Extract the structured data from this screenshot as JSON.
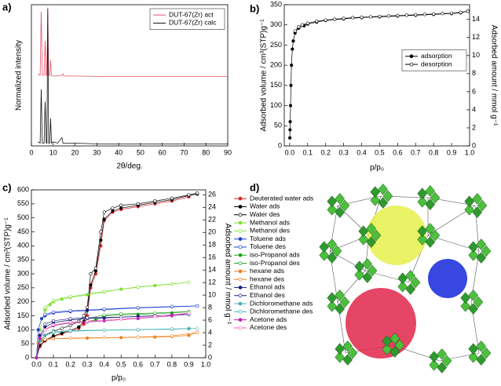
{
  "chart_data": [
    {
      "type": "line",
      "label": "a)",
      "xlabel": "2θ/deg.",
      "ylabel": "Normalized intensity",
      "xlim": [
        0,
        90
      ],
      "xticks": [
        0,
        10,
        20,
        30,
        40,
        50,
        60,
        70,
        80,
        90
      ],
      "ylim": [
        0,
        1.02
      ],
      "legend": "upper right",
      "x": [
        3,
        4,
        4.5,
        5,
        5.8,
        6.3,
        6.8,
        7.1,
        7.5,
        7.9,
        8.4,
        8.8,
        9.2,
        10,
        12,
        14,
        14.5,
        15,
        20,
        30,
        40,
        50,
        60,
        70,
        80,
        90
      ],
      "series": [
        {
          "name": "DUT-67(Zr) act",
          "color": "#e8506a",
          "marker": "none",
          "values": [
            0.52,
            0.51,
            0.97,
            0.51,
            0.51,
            0.76,
            0.51,
            0.51,
            1.0,
            0.51,
            0.51,
            0.62,
            0.505,
            0.505,
            0.505,
            0.51,
            0.52,
            0.505,
            0.505,
            0.502,
            0.502,
            0.502,
            0.502,
            0.502,
            0.502,
            0.502
          ]
        },
        {
          "name": "DUT-67(Zr) calc",
          "color": "#111111",
          "marker": "none",
          "values": [
            0.03,
            0.02,
            0.41,
            0.02,
            0.02,
            0.32,
            0.02,
            0.02,
            0.99,
            0.02,
            0.02,
            0.2,
            0.02,
            0.03,
            0.02,
            0.06,
            0.02,
            0.02,
            0.02,
            0.015,
            0.015,
            0.015,
            0.015,
            0.015,
            0.015,
            0.015
          ]
        }
      ]
    },
    {
      "type": "line",
      "label": "b)",
      "xlabel": "p/p₀",
      "ylabel": "Adsorbed volume / cm³(STP)g⁻¹",
      "y2label": "Adsorbed amount / mmol g⁻¹",
      "xlim": [
        -0.03,
        1.0
      ],
      "xticks": [
        {
          "value": 0,
          "label": "0.0"
        },
        0.1,
        0.2,
        0.3,
        0.4,
        0.5,
        0.6,
        0.7,
        0.8,
        0.9,
        {
          "value": 1,
          "label": "1.0"
        }
      ],
      "ylim": [
        0,
        350
      ],
      "yticks": [
        0,
        50,
        100,
        150,
        200,
        250,
        300,
        350
      ],
      "y2lim": [
        0,
        15.625
      ],
      "y2ticks": [
        0,
        2,
        4,
        6,
        8,
        10,
        12,
        14
      ],
      "legend": "center right",
      "series": [
        {
          "name": "adsorption",
          "color": "#000000",
          "marker": "filled",
          "x": [
            0.001,
            0.002,
            0.003,
            0.005,
            0.007,
            0.01,
            0.015,
            0.02,
            0.03,
            0.05,
            0.08,
            0.1,
            0.15,
            0.2,
            0.3,
            0.4,
            0.5,
            0.6,
            0.7,
            0.8,
            0.9,
            0.95,
            0.99
          ],
          "values": [
            20,
            40,
            60,
            100,
            150,
            200,
            240,
            260,
            280,
            292,
            298,
            302,
            307,
            311,
            315,
            318,
            320,
            322,
            324,
            326,
            328,
            330,
            334
          ]
        },
        {
          "name": "desorption",
          "color": "#000000",
          "marker": "open",
          "x": [
            0.99,
            0.95,
            0.9,
            0.85,
            0.8,
            0.75,
            0.7,
            0.65,
            0.6,
            0.55,
            0.5,
            0.45,
            0.4,
            0.35,
            0.3,
            0.25,
            0.2,
            0.15,
            0.1,
            0.07,
            0.05,
            0.03
          ],
          "values": [
            334,
            331,
            329,
            328,
            327,
            326,
            325,
            324,
            323,
            322,
            321,
            320,
            319,
            318,
            316,
            314,
            312,
            309,
            304,
            300,
            295,
            285
          ]
        }
      ]
    },
    {
      "type": "line",
      "label": "c)",
      "xlabel": "p/p₀",
      "ylabel": "Adsorbed volume / cm³(STP)g⁻¹",
      "y2label": "Adsorbed amount / mmol g⁻¹",
      "xlim": [
        -0.03,
        1.0
      ],
      "xticks": [
        {
          "value": 0,
          "label": "0.0"
        },
        0.1,
        0.2,
        0.3,
        0.4,
        0.5,
        0.6,
        0.7,
        0.8,
        0.9,
        {
          "value": 1,
          "label": "1.0"
        }
      ],
      "ylim": [
        0,
        600
      ],
      "yticks": [
        0,
        50,
        100,
        150,
        200,
        250,
        300,
        350,
        400,
        450,
        500,
        550,
        600
      ],
      "y2lim": [
        0,
        26.79
      ],
      "y2ticks": [
        0,
        2,
        4,
        6,
        8,
        10,
        12,
        14,
        16,
        18,
        20,
        22,
        24,
        26
      ],
      "legend": "outside right",
      "series": [
        {
          "name": "Deuterated water ads",
          "color": "#e8202a",
          "marker": "filled",
          "x": [
            0,
            0.02,
            0.05,
            0.1,
            0.15,
            0.2,
            0.25,
            0.28,
            0.3,
            0.32,
            0.35,
            0.38,
            0.4,
            0.45,
            0.5,
            0.6,
            0.7,
            0.8,
            0.9
          ],
          "values": [
            0,
            40,
            60,
            75,
            85,
            95,
            105,
            120,
            150,
            250,
            300,
            400,
            490,
            520,
            530,
            540,
            550,
            560,
            575
          ]
        },
        {
          "name": "Water ads",
          "color": "#000000",
          "marker": "filled",
          "x": [
            0,
            0.02,
            0.05,
            0.1,
            0.15,
            0.2,
            0.25,
            0.28,
            0.3,
            0.32,
            0.35,
            0.38,
            0.4,
            0.45,
            0.5,
            0.6,
            0.7,
            0.8,
            0.9,
            0.95
          ],
          "values": [
            0,
            45,
            62,
            78,
            88,
            98,
            110,
            130,
            170,
            260,
            310,
            420,
            495,
            525,
            535,
            545,
            555,
            565,
            580,
            585
          ]
        },
        {
          "name": "Water des",
          "color": "#000000",
          "marker": "open",
          "x": [
            0.95,
            0.9,
            0.8,
            0.7,
            0.6,
            0.5,
            0.45,
            0.4,
            0.38,
            0.35,
            0.32,
            0.3,
            0.28,
            0.25,
            0.2,
            0.15,
            0.1,
            0.05,
            0.02
          ],
          "values": [
            588,
            582,
            570,
            560,
            550,
            545,
            535,
            520,
            450,
            320,
            300,
            180,
            150,
            130,
            115,
            105,
            95,
            80,
            60
          ]
        },
        {
          "name": "Methanol ads",
          "color": "#7fe030",
          "marker": "filled",
          "x": [
            0,
            0.02,
            0.05,
            0.08,
            0.1,
            0.15,
            0.2,
            0.3,
            0.4,
            0.5,
            0.6,
            0.7,
            0.8,
            0.9
          ],
          "values": [
            0,
            100,
            170,
            190,
            200,
            210,
            215,
            225,
            235,
            245,
            252,
            258,
            263,
            270
          ]
        },
        {
          "name": "Methanol des",
          "color": "#7fe030",
          "marker": "open",
          "x": [
            0.9,
            0.8,
            0.6,
            0.4,
            0.2,
            0.1,
            0.05
          ],
          "values": [
            270,
            264,
            253,
            237,
            218,
            205,
            180
          ]
        },
        {
          "name": "Toluene ads",
          "color": "#2040d0",
          "marker": "filled",
          "x": [
            0,
            0.01,
            0.03,
            0.05,
            0.1,
            0.2,
            0.4,
            0.6,
            0.8,
            0.95
          ],
          "values": [
            0,
            100,
            140,
            150,
            160,
            165,
            172,
            178,
            182,
            185
          ]
        },
        {
          "name": "Toluene des",
          "color": "#2040d0",
          "marker": "open",
          "x": [
            0.95,
            0.8,
            0.6,
            0.4,
            0.2,
            0.1,
            0.05
          ],
          "values": [
            185,
            183,
            179,
            174,
            168,
            163,
            155
          ]
        },
        {
          "name": "iso-Propanol ads",
          "color": "#20a020",
          "marker": "filled",
          "x": [
            0,
            0.02,
            0.05,
            0.1,
            0.2,
            0.3,
            0.35,
            0.4,
            0.6,
            0.8,
            0.9
          ],
          "values": [
            0,
            70,
            100,
            115,
            125,
            130,
            135,
            150,
            155,
            160,
            165
          ]
        },
        {
          "name": "iso-Propanol des",
          "color": "#20a020",
          "marker": "open",
          "x": [
            0.9,
            0.7,
            0.5,
            0.4,
            0.3,
            0.2,
            0.1,
            0.05
          ],
          "values": [
            165,
            160,
            157,
            153,
            140,
            135,
            125,
            110
          ]
        },
        {
          "name": "hexane ads",
          "color": "#f08020",
          "marker": "filled",
          "x": [
            0,
            0.01,
            0.03,
            0.05,
            0.1,
            0.3,
            0.5,
            0.7,
            0.8,
            0.9,
            0.95
          ],
          "values": [
            0,
            50,
            62,
            66,
            68,
            70,
            72,
            74,
            76,
            80,
            90
          ]
        },
        {
          "name": "hexane des",
          "color": "#f08020",
          "marker": "open",
          "x": [
            0.95,
            0.8,
            0.6,
            0.4,
            0.2,
            0.1,
            0.05
          ],
          "values": [
            90,
            78,
            74,
            72,
            70,
            68,
            65
          ]
        },
        {
          "name": "Ethanol ads",
          "color": "#202080",
          "marker": "filled",
          "x": [
            0,
            0.02,
            0.05,
            0.1,
            0.2,
            0.3,
            0.4,
            0.6,
            0.8,
            0.9
          ],
          "values": [
            0,
            80,
            110,
            125,
            135,
            140,
            142,
            148,
            152,
            155
          ]
        },
        {
          "name": "Ethanol des",
          "color": "#202080",
          "marker": "open",
          "x": [
            0.9,
            0.7,
            0.5,
            0.3,
            0.2,
            0.1,
            0.05
          ],
          "values": [
            155,
            150,
            145,
            143,
            140,
            132,
            120
          ]
        },
        {
          "name": "Dichloromethane ads",
          "color": "#40b0b0",
          "marker": "filled",
          "x": [
            0,
            0.02,
            0.05,
            0.1,
            0.2,
            0.4,
            0.6,
            0.8,
            0.9
          ],
          "values": [
            0,
            60,
            80,
            90,
            95,
            98,
            100,
            102,
            104
          ]
        },
        {
          "name": "Dichloromethane des",
          "color": "#40b0b0",
          "marker": "open",
          "x": [
            0.95,
            0.8,
            0.6,
            0.4,
            0.2,
            0.1
          ],
          "values": [
            105,
            103,
            101,
            99,
            97,
            93
          ]
        },
        {
          "name": "Acetone ads",
          "color": "#c020c0",
          "marker": "filled",
          "x": [
            0,
            0.02,
            0.05,
            0.1,
            0.2,
            0.3,
            0.4,
            0.6,
            0.8,
            0.9
          ],
          "values": [
            0,
            70,
            100,
            115,
            125,
            128,
            132,
            140,
            150,
            160
          ]
        },
        {
          "name": "Acetone des",
          "color": "#ff60b0",
          "marker": "open",
          "x": [
            0.9,
            0.7,
            0.5,
            0.3,
            0.2,
            0.1,
            0.05
          ],
          "values": [
            160,
            148,
            138,
            130,
            127,
            118,
            100
          ]
        }
      ]
    }
  ],
  "panel_d": {
    "label": "d)"
  }
}
